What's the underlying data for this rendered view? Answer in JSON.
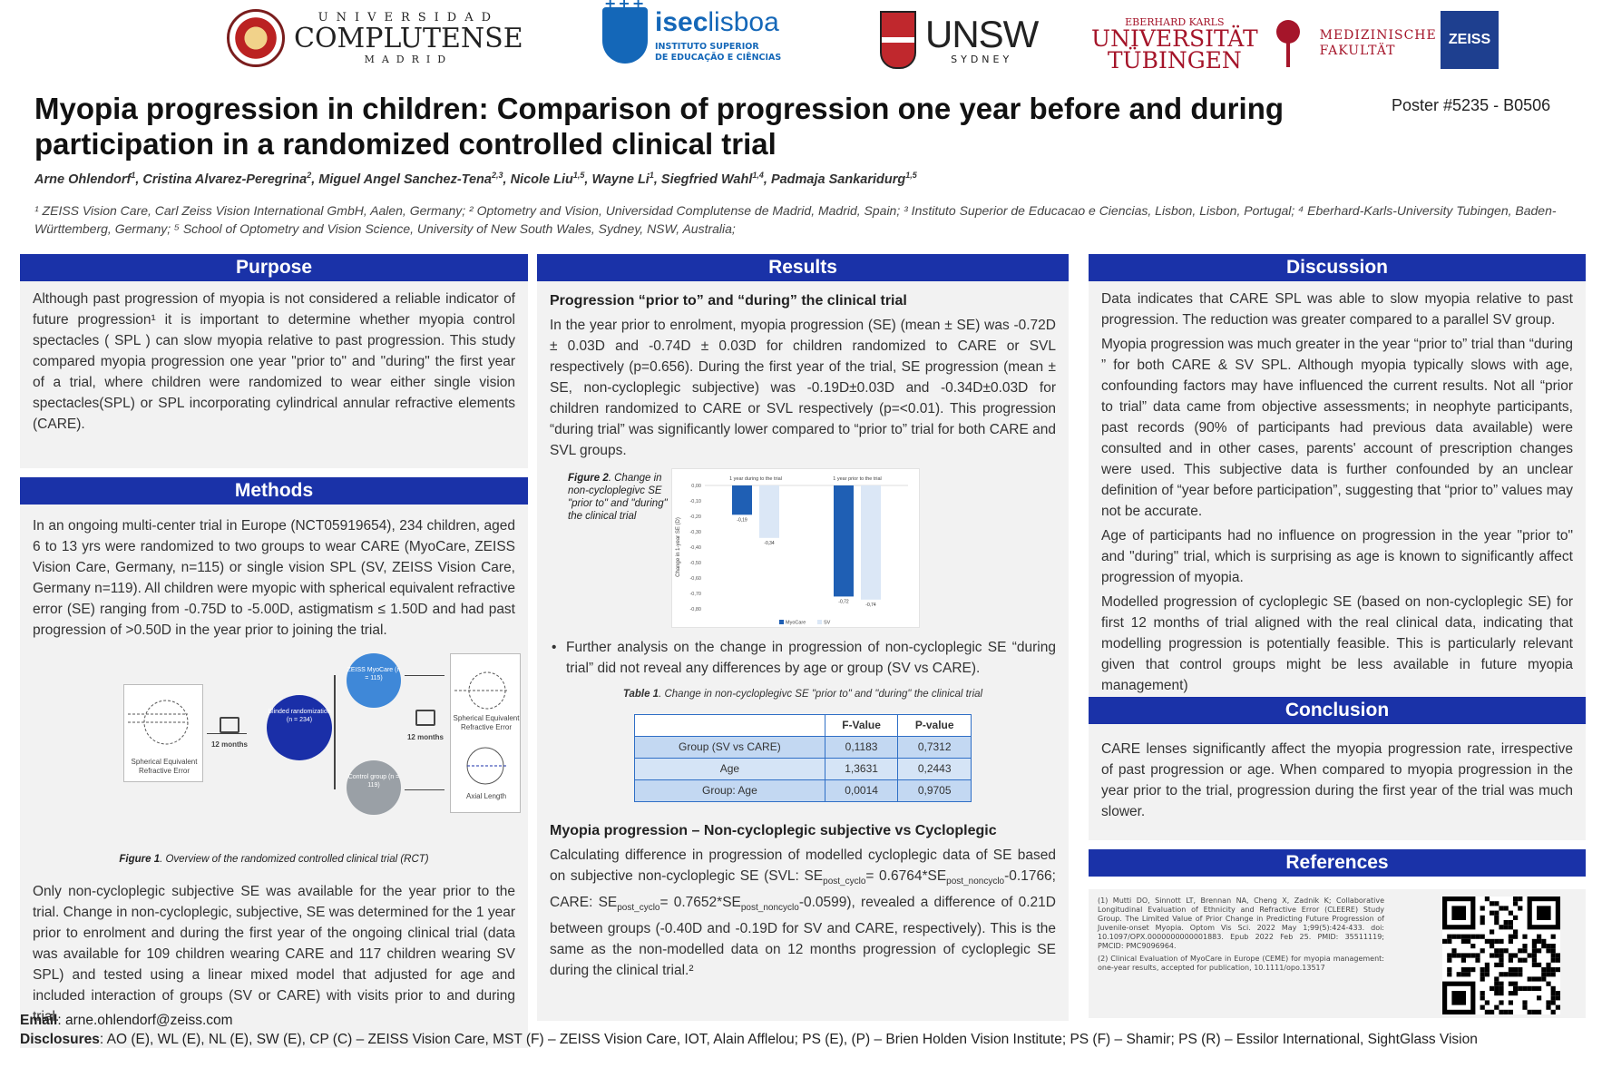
{
  "logos": {
    "ucm": {
      "line1": "UNIVERSIDAD",
      "line2": "COMPLUTENSE",
      "line3": "MADRID"
    },
    "isec": {
      "name_bold": "isec",
      "name_rest": "lisboa",
      "sub1": "INSTITUTO SUPERIOR",
      "sub2": "DE EDUCAÇÃO E CIÊNCIAS"
    },
    "unsw": {
      "name": "UNSW",
      "sub": "SYDNEY"
    },
    "tubingen": {
      "top": "EBERHARD KARLS",
      "line1": "UNIVERSITÄT",
      "line2": "TÜBINGEN",
      "med1": "MEDIZINISCHE",
      "med2": "FAKULTÄT"
    },
    "zeiss": {
      "name": "ZEISS"
    }
  },
  "title": "Myopia progression in children: Comparison of progression one year before and during participation in a randomized controlled clinical trial",
  "poster_id": "Poster #5235 - B0506",
  "authors": [
    {
      "name": "Arne Ohlendorf",
      "sup": "1"
    },
    {
      "name": "Cristina Alvarez-Peregrina",
      "sup": "2"
    },
    {
      "name": "Miguel Angel Sanchez-Tena",
      "sup": "2,3"
    },
    {
      "name": "Nicole Liu",
      "sup": "1,5"
    },
    {
      "name": "Wayne Li",
      "sup": "1"
    },
    {
      "name": "Siegfried Wahl",
      "sup": "1,4"
    },
    {
      "name": "Padmaja Sankaridurg",
      "sup": "1,5"
    }
  ],
  "affiliations": "¹ ZEISS Vision Care, Carl Zeiss Vision International GmbH, Aalen, Germany; ² Optometry and Vision, Universidad Complutense de Madrid, Madrid, Spain; ³ Instituto Superior de Educacao e Ciencias, Lisbon, Lisbon, Portugal; ⁴ Eberhard-Karls-University Tubingen, Baden-Württemberg, Germany; ⁵ School of Optometry and Vision Science, University of New South Wales, Sydney, NSW, Australia;",
  "purpose": {
    "header": "Purpose",
    "text": "Although past progression of myopia is not considered a reliable indicator of future progression¹ it is important to determine whether myopia control spectacles ( SPL ) can slow myopia relative to past progression. This study compared myopia progression one year \"prior to\" and \"during\" the first year of a trial, where children were randomized to wear either single vision spectacles(SPL) or SPL incorporating cylindrical annular refractive elements (CARE)."
  },
  "methods": {
    "header": "Methods",
    "p1": "In an ongoing multi-center trial in Europe (NCT05919654), 234 children, aged 6 to 13 yrs were randomized to two groups to wear CARE (MyoCare, ZEISS Vision Care, Germany, n=115) or single vision SPL (SV, ZEISS Vision Care, Germany n=119). All children were myopic with spherical equivalent refractive error (SE) ranging from -0.75D to -5.00D, astigmatism ≤ 1.50D and had past progression of >0.50D in the year prior to joining the trial.",
    "figure": {
      "left_label": "Spherical Equivalent Refractive Error",
      "months1": "12 months",
      "center_title": "Blinded randomization (n = 234)",
      "top_title": "ZEISS MyoCare (n = 115)",
      "bottom_title": "Control group (n = 119)",
      "months2": "12 months",
      "right_top": "Spherical Equivalent Refractive Error",
      "right_bottom": "Axial Length",
      "caption_label": "Figure 1",
      "caption_text": ". Overview of the randomized controlled clinical trial (RCT)"
    },
    "p2": "Only non-cycloplegic subjective SE was available for the year prior to the trial. Change in non-cycloplegic, subjective, SE was determined for the 1 year prior to enrolment and during the first year of the ongoing clinical trial (data was available for 109 children wearing CARE and 117 children wearing SV SPL) and tested using a linear mixed model that adjusted for age and included interaction of groups (SV or CARE) with visits prior to and during trial."
  },
  "results": {
    "header": "Results",
    "sub1": "Progression “prior to” and “during” the clinical trial",
    "p1": "In the year prior to enrolment, myopia progression (SE) (mean ± SE) was -0.72D ± 0.03D and -0.74D ± 0.03D for children randomized to CARE or SVL respectively (p=0.656). During the first year of the trial, SE progression (mean ± SE, non-cycloplegic subjective) was -0.19D±0.03D and -0.34D±0.03D for children randomized to CARE or SVL respectively (p=<0.01). This progression “during trial” was significantly lower compared to “prior to” trial for both CARE and SVL groups.",
    "fig2_label": "Figure 2",
    "fig2_text": ". Change in non-cycloplegivc SE \"prior to\" and \"during\" the clinical trial",
    "bullet": "Further analysis on the change in progression of non-cycloplegic SE “during trial” did not reveal any differences by age or group (SV vs CARE).",
    "table_label": "Table 1",
    "table_text": ". Change in non-cycloplegivc SE \"prior to\" and \"during\" the clinical trial",
    "table": {
      "headers": [
        "",
        "F-Value",
        "P-value"
      ],
      "rows": [
        [
          "Group (SV vs CARE)",
          "0,1183",
          "0,7312"
        ],
        [
          "Age",
          "1,3631",
          "0,2443"
        ],
        [
          "Group: Age",
          "0,0014",
          "0,9705"
        ]
      ]
    },
    "sub2": "Myopia progression – Non-cycloplegic subjective vs Cycloplegic",
    "p2_a": "Calculating difference in progression of modelled cycloplegic data of SE based on subjective non-cycloplegic SE (SVL: SE",
    "p2_sub1": "post_cyclo",
    "p2_b": "= 0.6764*SE",
    "p2_sub2": "post_noncyclo",
    "p2_c": "-0.1766; CARE: SE",
    "p2_sub3": "post_cyclo",
    "p2_d": "= 0.7652*SE",
    "p2_sub4": "post_noncyclo",
    "p2_e": "-0.0599), revealed a difference of 0.21D between groups (-0.40D and -0.19D for SV and CARE, respectively). This is the same as the non-modelled data on 12 months progression of cycloplegic SE during the clinical trial.²"
  },
  "chart_data": {
    "type": "bar",
    "categories": [
      "1 year during to the trial",
      "1 year prior to the trial"
    ],
    "series": [
      {
        "name": "MyoCare",
        "values": [
          -0.19,
          -0.72
        ]
      },
      {
        "name": "SV",
        "values": [
          -0.34,
          -0.74
        ]
      }
    ],
    "data_labels": [
      [
        "-0,19",
        "-0,72"
      ],
      [
        "-0,34",
        "-0,74"
      ]
    ],
    "ylabel": "Change in 1-year SE (D)",
    "ylim": [
      -0.8,
      0.0
    ],
    "yticks": [
      "0,00",
      "-0,10",
      "-0,20",
      "-0,30",
      "-0,40",
      "-0,50",
      "-0,60",
      "-0,70",
      "-0,80"
    ],
    "legend_position": "bottom",
    "colors": {
      "MyoCare": "#1f5fb4",
      "SV": "#dbe7f6"
    }
  },
  "discussion": {
    "header": "Discussion",
    "p1": "Data indicates that CARE SPL was able to slow myopia relative to past progression. The reduction was greater compared to a parallel SV group.",
    "p2": "Myopia progression was much greater in the year “prior to” trial than “during ” for both CARE & SV SPL. Although myopia typically slows with age, confounding factors may have influenced the current results. Not all “prior to trial” data came from objective assessments; in neophyte participants, past records (90% of participants had previous data available) were consulted and in other cases, parents' account of prescription changes were used. This subjective data is further confounded by an unclear definition of “year before participation”, suggesting that “prior to” values may not be accurate.",
    "p3": "Age of participants had no influence on progression in the year \"prior to\" and \"during\" trial, which is surprising as age is known to significantly affect progression of myopia.",
    "p4": "Modelled progression of cycloplegic SE (based on non-cycloplegic SE) for first 12 months of trial aligned with the real clinical data, indicating that modelling progression is potentially feasible. This is particularly relevant given that control groups might be less available in future myopia management)"
  },
  "conclusion": {
    "header": "Conclusion",
    "text": "CARE lenses significantly affect the myopia progression rate, irrespective of past progression or age. When compared to myopia progression in the year prior to the trial, progression during the first year of the trial was much slower."
  },
  "references": {
    "header": "References",
    "r1": "(1) Mutti DO, Sinnott LT, Brennan NA, Cheng X, Zadnik K; Collaborative Longitudinal Evaluation of Ethnicity and Refractive Error (CLEERE) Study Group. The Limited Value of Prior Change in Predicting Future Progression of Juvenile-onset Myopia. Optom Vis Sci. 2022 May 1;99(5):424-433. doi: 10.1097/OPX.0000000000001883. Epub 2022 Feb 25. PMID: 35511119; PMCID: PMC9096964.",
    "r2": "(2) Clinical Evaluation of MyoCare in Europe (CEME) for myopia management: one-year results, accepted for publication, 10.1111/opo.13517"
  },
  "footer": {
    "email_label": "Email",
    "email": ": arne.ohlendorf@zeiss.com",
    "disclosures_label": "Disclosures",
    "disclosures": ": AO (E), WL (E), NL (E), SW (E), CP (C) – ZEISS Vision Care, MST (F) – ZEISS Vision Care, IOT, Alain Afflelou; PS (E), (P) – Brien Holden Vision Institute; PS (F) – Shamir; PS (R) – Essilor International, SightGlass Vision"
  }
}
